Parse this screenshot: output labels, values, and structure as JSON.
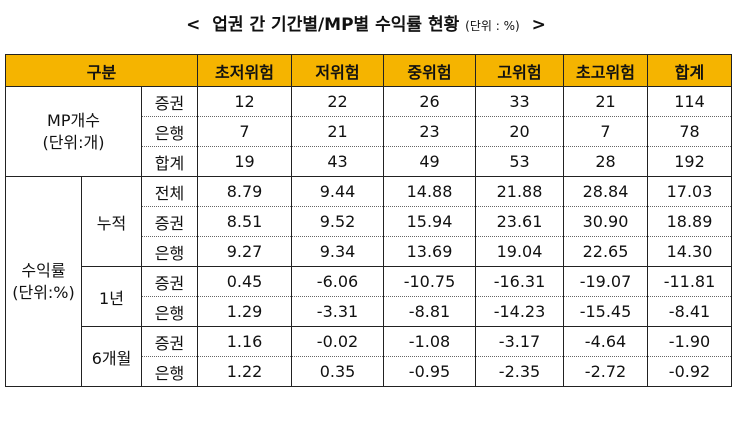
{
  "title": {
    "open": "<",
    "text": "업권 간 기간별/MP별 수익률 현황",
    "unit": "(단위 : %)",
    "close": ">"
  },
  "headers": [
    "구분",
    "초저위험",
    "저위험",
    "중위험",
    "고위험",
    "초고위험",
    "합계"
  ],
  "mp": {
    "label_line1": "MP개수",
    "label_line2": "(단위:개)",
    "rows": [
      {
        "sub": "증권",
        "values": [
          "12",
          "22",
          "26",
          "33",
          "21",
          "114"
        ]
      },
      {
        "sub": "은행",
        "values": [
          "7",
          "21",
          "23",
          "20",
          "7",
          "78"
        ]
      },
      {
        "sub": "합계",
        "values": [
          "19",
          "43",
          "49",
          "53",
          "28",
          "192"
        ]
      }
    ]
  },
  "returns": {
    "label_line1": "수익률",
    "label_line2": "(단위:%)",
    "cumulative": {
      "label": "누적",
      "rows": [
        {
          "sub": "전체",
          "values": [
            "8.79",
            "9.44",
            "14.88",
            "21.88",
            "28.84",
            "17.03"
          ]
        },
        {
          "sub": "증권",
          "values": [
            "8.51",
            "9.52",
            "15.94",
            "23.61",
            "30.90",
            "18.89"
          ]
        },
        {
          "sub": "은행",
          "values": [
            "9.27",
            "9.34",
            "13.69",
            "19.04",
            "22.65",
            "14.30"
          ]
        }
      ]
    },
    "one_year": {
      "label": "1년",
      "rows": [
        {
          "sub": "증권",
          "values": [
            "0.45",
            "-6.06",
            "-10.75",
            "-16.31",
            "-19.07",
            "-11.81"
          ]
        },
        {
          "sub": "은행",
          "values": [
            "1.29",
            "-3.31",
            "-8.81",
            "-14.23",
            "-15.45",
            "-8.41"
          ]
        }
      ]
    },
    "six_month": {
      "label": "6개월",
      "rows": [
        {
          "sub": "증권",
          "values": [
            "1.16",
            "-0.02",
            "-1.08",
            "-3.17",
            "-4.64",
            "-1.90"
          ]
        },
        {
          "sub": "은행",
          "values": [
            "1.22",
            "0.35",
            "-0.95",
            "-2.35",
            "-2.72",
            "-0.92"
          ]
        }
      ]
    }
  },
  "colors": {
    "header_bg": "#f5b400"
  }
}
